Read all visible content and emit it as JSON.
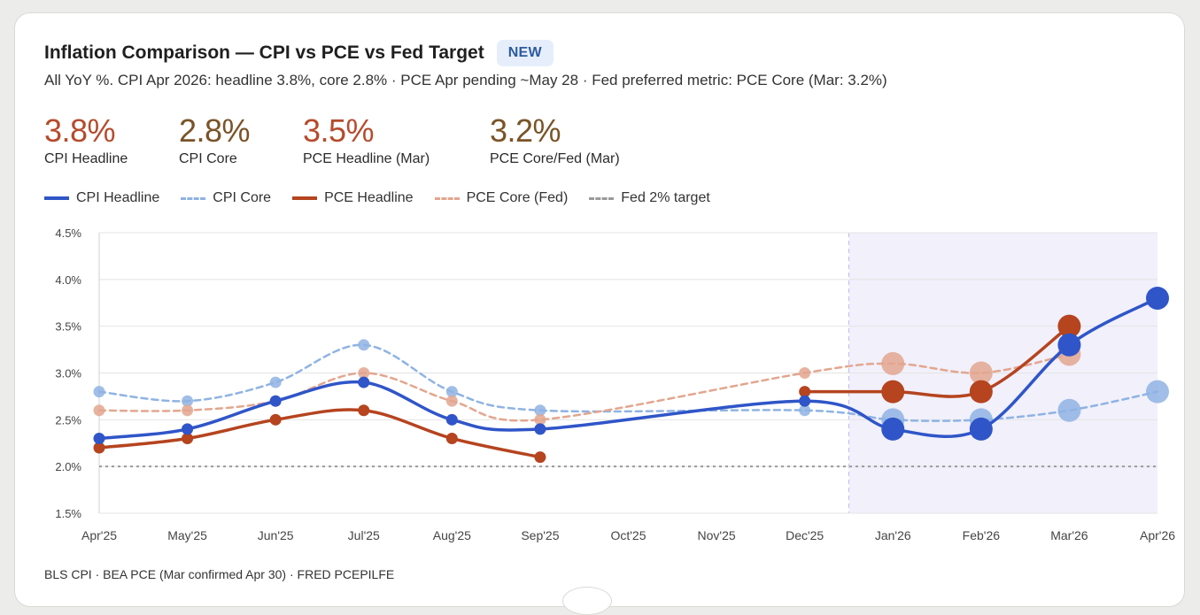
{
  "header": {
    "title": "Inflation Comparison — CPI vs PCE vs Fed Target",
    "badge": "NEW",
    "subtitle": "All YoY %. CPI Apr 2026: headline 3.8%, core 2.8% · PCE Apr pending ~May 28 · Fed preferred metric: PCE Core (Mar: 3.2%)"
  },
  "stats": [
    {
      "value": "3.8%",
      "label": "CPI Headline",
      "color": "#b54b2d"
    },
    {
      "value": "2.8%",
      "label": "CPI Core",
      "color": "#7a5327"
    },
    {
      "value": "3.5%",
      "label": "PCE Headline (Mar)",
      "color": "#b54b2d"
    },
    {
      "value": "3.2%",
      "label": "PCE Core/Fed (Mar)",
      "color": "#7a5327"
    }
  ],
  "legend": [
    {
      "label": "CPI Headline",
      "color": "#2f55c8",
      "dash": false
    },
    {
      "label": "CPI Core",
      "color": "#8fb3e3",
      "dash": true
    },
    {
      "label": "PCE Headline",
      "color": "#b5441f",
      "dash": false
    },
    {
      "label": "PCE Core (Fed)",
      "color": "#e3a68f",
      "dash": true
    },
    {
      "label": "Fed 2% target",
      "color": "#9a9a9a",
      "dash": true
    }
  ],
  "chart_data": {
    "type": "line",
    "categories": [
      "Apr'25",
      "May'25",
      "Jun'25",
      "Jul'25",
      "Aug'25",
      "Sep'25",
      "Oct'25",
      "Nov'25",
      "Dec'25",
      "Jan'26",
      "Feb'26",
      "Mar'26",
      "Apr'26"
    ],
    "ylim": [
      1.5,
      4.5
    ],
    "yticks": [
      "1.5%",
      "2.0%",
      "2.5%",
      "3.0%",
      "3.5%",
      "4.0%",
      "4.5%"
    ],
    "ytick_values": [
      1.5,
      2.0,
      2.5,
      3.0,
      3.5,
      4.0,
      4.5
    ],
    "grid": true,
    "highlight_from_category": "Jan'26",
    "highlight_color": "#f1f0fb",
    "target": {
      "name": "Fed 2% target",
      "value": 2.0,
      "color": "#9a9a9a"
    },
    "series": [
      {
        "name": "CPI Core",
        "color": "#8fb3e3",
        "dashed": true,
        "values": [
          2.8,
          2.7,
          2.9,
          3.3,
          2.8,
          2.6,
          null,
          null,
          2.6,
          2.5,
          2.5,
          2.6,
          2.8
        ]
      },
      {
        "name": "PCE Core (Fed)",
        "color": "#e3a68f",
        "dashed": true,
        "values": [
          2.6,
          2.6,
          2.7,
          3.0,
          2.7,
          2.5,
          null,
          null,
          3.0,
          3.1,
          3.0,
          3.2,
          null
        ]
      },
      {
        "name": "PCE Headline",
        "color": "#b5441f",
        "dashed": false,
        "values": [
          2.2,
          2.3,
          2.5,
          2.6,
          2.3,
          2.1,
          null,
          null,
          2.8,
          2.8,
          2.8,
          3.5,
          null
        ]
      },
      {
        "name": "CPI Headline",
        "color": "#2f55c8",
        "dashed": false,
        "values": [
          2.3,
          2.4,
          2.7,
          2.9,
          2.5,
          2.4,
          null,
          null,
          2.7,
          2.4,
          2.4,
          3.3,
          3.8
        ]
      }
    ]
  },
  "footer": {
    "source": "BLS CPI · BEA PCE (Mar confirmed Apr 30) · FRED PCEPILFE"
  }
}
